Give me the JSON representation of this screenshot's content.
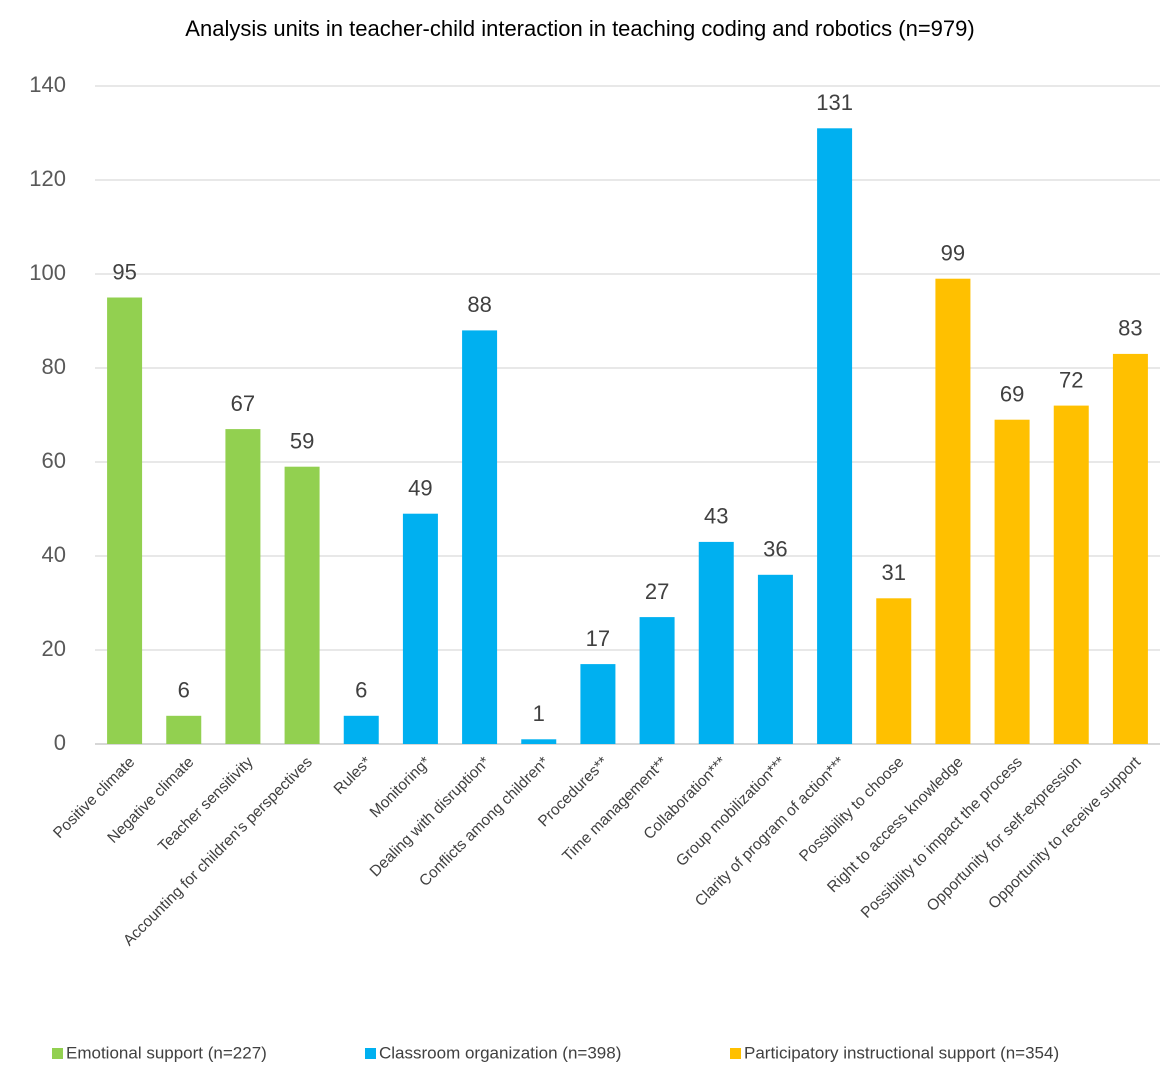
{
  "chart_data": {
    "type": "bar",
    "title": "Analysis units in teacher-child interaction in teaching coding and robotics (n=979)",
    "categories": [
      "Positive climate",
      "Negative climate",
      "Teacher sensitivity",
      "Accounting for children's perspectives",
      "Rules*",
      "Monitoring*",
      "Dealing with disruption*",
      "Conflicts among children*",
      "Procedures**",
      "Time management**",
      "Collaboration***",
      "Group mobilization***",
      "Clarity of program of action***",
      "Possibility to choose",
      "Right to access knowledge",
      "Possibility to impact the process",
      "Opportunity for self-expression",
      "Opportunity to receive support"
    ],
    "series": [
      {
        "name": "Emotional support (n=227)",
        "color": "#92d050",
        "values": [
          95,
          6,
          67,
          59,
          null,
          null,
          null,
          null,
          null,
          null,
          null,
          null,
          null,
          null,
          null,
          null,
          null,
          null
        ]
      },
      {
        "name": "Classroom organization (n=398)",
        "color": "#00b0f0",
        "values": [
          null,
          null,
          null,
          null,
          6,
          49,
          88,
          1,
          17,
          27,
          43,
          36,
          131,
          null,
          null,
          null,
          null,
          null
        ]
      },
      {
        "name": "Participatory instructional support (n=354)",
        "color": "#ffc000",
        "values": [
          null,
          null,
          null,
          null,
          null,
          null,
          null,
          null,
          null,
          null,
          null,
          null,
          null,
          31,
          99,
          69,
          72,
          83
        ]
      }
    ],
    "ylim": [
      0,
      140
    ],
    "yticks": [
      0,
      20,
      40,
      60,
      80,
      100,
      120,
      140
    ],
    "grid": true,
    "legend": "bottom"
  }
}
